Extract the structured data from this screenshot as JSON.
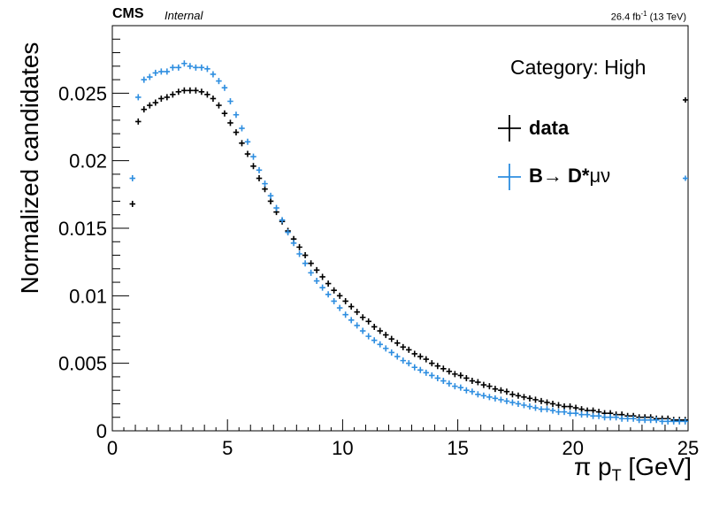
{
  "header": {
    "experiment": "CMS",
    "status": "Internal",
    "lumi": "26.4 fb",
    "lumi_exp": "-1",
    "energy": "(13 TeV)"
  },
  "category": "Category: High",
  "legend": [
    {
      "label_main": "data",
      "label_tail": "",
      "color": "#000000"
    },
    {
      "label_main": "B→ D*",
      "label_tail": "μν",
      "color": "#2e8ee0"
    }
  ],
  "chart_data": {
    "type": "scatter",
    "xlabel": "π p",
    "xlabel_sub": "T",
    "xlabel_unit": " [GeV]",
    "ylabel": "Normalized candidates",
    "xlim": [
      0,
      25
    ],
    "ylim": [
      0,
      0.03
    ],
    "xticks": [
      0,
      5,
      10,
      15,
      20,
      25
    ],
    "xtick_labels": [
      "0",
      "5",
      "10",
      "15",
      "20",
      "25"
    ],
    "yticks": [
      0,
      0.005,
      0.01,
      0.015,
      0.02,
      0.025
    ],
    "ytick_labels": [
      "0",
      "0.005",
      "0.01",
      "0.015",
      "0.02",
      "0.025"
    ],
    "bin_width": 0.25,
    "x": [
      0.875,
      1.125,
      1.375,
      1.625,
      1.875,
      2.125,
      2.375,
      2.625,
      2.875,
      3.125,
      3.375,
      3.625,
      3.875,
      4.125,
      4.375,
      4.625,
      4.875,
      5.125,
      5.375,
      5.625,
      5.875,
      6.125,
      6.375,
      6.625,
      6.875,
      7.125,
      7.375,
      7.625,
      7.875,
      8.125,
      8.375,
      8.625,
      8.875,
      9.125,
      9.375,
      9.625,
      9.875,
      10.125,
      10.375,
      10.625,
      10.875,
      11.125,
      11.375,
      11.625,
      11.875,
      12.125,
      12.375,
      12.625,
      12.875,
      13.125,
      13.375,
      13.625,
      13.875,
      14.125,
      14.375,
      14.625,
      14.875,
      15.125,
      15.375,
      15.625,
      15.875,
      16.125,
      16.375,
      16.625,
      16.875,
      17.125,
      17.375,
      17.625,
      17.875,
      18.125,
      18.375,
      18.625,
      18.875,
      19.125,
      19.375,
      19.625,
      19.875,
      20.125,
      20.375,
      20.625,
      20.875,
      21.125,
      21.375,
      21.625,
      21.875,
      22.125,
      22.375,
      22.625,
      22.875,
      23.125,
      23.375,
      23.625,
      23.875,
      24.125,
      24.375,
      24.625,
      24.875
    ],
    "series": [
      {
        "name": "data",
        "color": "#000000",
        "values": [
          0.0168,
          0.0229,
          0.0238,
          0.0241,
          0.0243,
          0.0246,
          0.0247,
          0.0249,
          0.0251,
          0.0252,
          0.0252,
          0.0252,
          0.0251,
          0.0249,
          0.0246,
          0.0241,
          0.0235,
          0.0228,
          0.0221,
          0.0213,
          0.0205,
          0.0196,
          0.0187,
          0.0179,
          0.017,
          0.0162,
          0.0155,
          0.0148,
          0.0142,
          0.0136,
          0.013,
          0.0124,
          0.0119,
          0.0114,
          0.0109,
          0.0104,
          0.01,
          0.0096,
          0.0092,
          0.0088,
          0.0084,
          0.0081,
          0.0077,
          0.0074,
          0.0071,
          0.0068,
          0.0065,
          0.0062,
          0.006,
          0.0057,
          0.0055,
          0.0053,
          0.005,
          0.0048,
          0.0046,
          0.0044,
          0.0042,
          0.0041,
          0.0039,
          0.0037,
          0.0036,
          0.0034,
          0.0033,
          0.0031,
          0.003,
          0.0029,
          0.0027,
          0.0026,
          0.0025,
          0.0024,
          0.0023,
          0.0022,
          0.0021,
          0.002,
          0.0019,
          0.0018,
          0.0018,
          0.0017,
          0.0016,
          0.0015,
          0.0015,
          0.0014,
          0.0013,
          0.0013,
          0.0012,
          0.0012,
          0.0011,
          0.0011,
          0.001,
          0.001,
          0.001,
          0.0009,
          0.0009,
          0.0009,
          0.0008,
          0.0008,
          0.0008
        ]
      },
      {
        "name": "B→ D*μν",
        "color": "#2e8ee0",
        "values": [
          0.0187,
          0.0247,
          0.026,
          0.0262,
          0.0265,
          0.0266,
          0.0266,
          0.0269,
          0.0269,
          0.0272,
          0.027,
          0.0269,
          0.0269,
          0.0268,
          0.0264,
          0.0259,
          0.0254,
          0.0244,
          0.0234,
          0.0224,
          0.0214,
          0.0203,
          0.0193,
          0.0183,
          0.0174,
          0.0165,
          0.0156,
          0.0147,
          0.0139,
          0.0131,
          0.0124,
          0.0117,
          0.0111,
          0.0106,
          0.0101,
          0.0096,
          0.0091,
          0.0086,
          0.0082,
          0.0078,
          0.0074,
          0.007,
          0.0067,
          0.0064,
          0.0061,
          0.0058,
          0.0055,
          0.0052,
          0.005,
          0.0047,
          0.0045,
          0.0043,
          0.0041,
          0.0039,
          0.0037,
          0.0035,
          0.0033,
          0.0032,
          0.003,
          0.0029,
          0.0027,
          0.0026,
          0.0025,
          0.0024,
          0.0023,
          0.0022,
          0.0021,
          0.002,
          0.0019,
          0.0018,
          0.0017,
          0.0016,
          0.0016,
          0.0015,
          0.0014,
          0.0014,
          0.0013,
          0.0013,
          0.0012,
          0.0012,
          0.0011,
          0.0011,
          0.001,
          0.001,
          0.001,
          0.0009,
          0.0009,
          0.0009,
          0.0008,
          0.0008,
          0.0008,
          0.0008,
          0.0007,
          0.0007,
          0.0007,
          0.0007,
          0.0007
        ]
      }
    ],
    "overflow_markers": [
      {
        "series": "data",
        "y": 0.0245
      },
      {
        "series": "B→ D*μν",
        "y": 0.0187
      }
    ]
  }
}
